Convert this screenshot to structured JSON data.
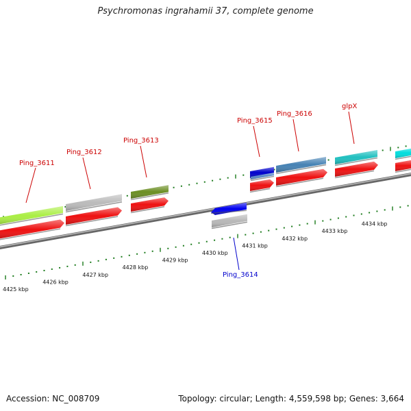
{
  "title": "Psychromonas ingrahamii 37, complete genome",
  "footer": {
    "accession": "Accession: NC_008709",
    "info": "Topology: circular; Length: 4,559,598 bp; Genes: 3,664"
  },
  "ruler": {
    "ticks": [
      "4425 kbp",
      "4426 kbp",
      "4427 kbp",
      "4428 kbp",
      "4429 kbp",
      "4430 kbp",
      "4431 kbp",
      "4432 kbp",
      "4433 kbp",
      "4434 kbp"
    ]
  },
  "genes": [
    {
      "name": "Ping_3611",
      "strand": "forward",
      "color": "#aaee44"
    },
    {
      "name": "Ping_3612",
      "strand": "forward",
      "color": "#bbbbbb"
    },
    {
      "name": "Ping_3613",
      "strand": "forward",
      "color": "#6b8e23"
    },
    {
      "name": "Ping_3614",
      "strand": "reverse",
      "color": "#0000ee"
    },
    {
      "name": "Ping_3615",
      "strand": "forward",
      "color": "#0000cc"
    },
    {
      "name": "Ping_3616",
      "strand": "forward",
      "color": "#4682b4"
    },
    {
      "name": "glpX",
      "strand": "forward",
      "color": "#20c0c0"
    },
    {
      "name": "",
      "strand": "forward",
      "color": "#00dddd"
    }
  ],
  "colors": {
    "cds": "#ee1111",
    "forward_label": "#cc0000",
    "reverse_label": "#0000cc",
    "backbone": "#888888",
    "tick": "#1a7a1a"
  }
}
